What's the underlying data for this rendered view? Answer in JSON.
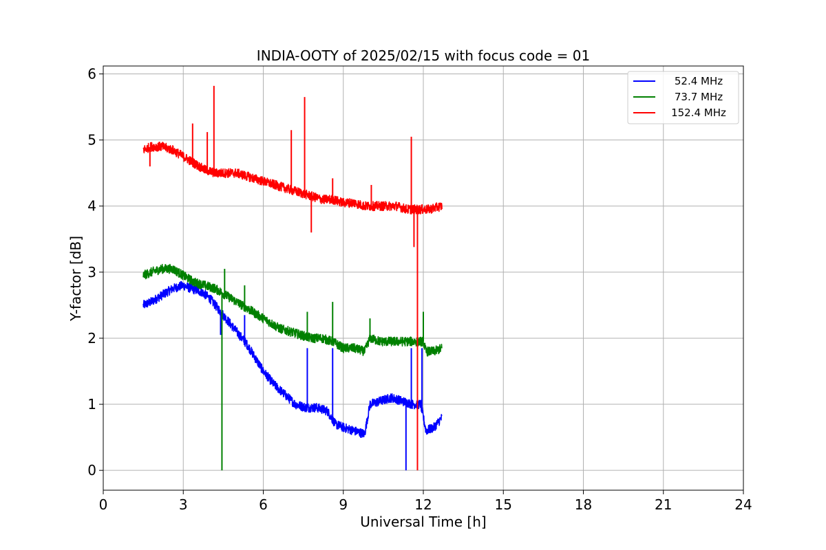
{
  "chart_data": {
    "type": "line",
    "title": "INDIA-OOTY of 2025/02/15 with focus code = 01",
    "xlabel": "Universal Time [h]",
    "ylabel": "Y-factor [dB]",
    "xlim": [
      0,
      24
    ],
    "ylim": [
      -0.3,
      6.12
    ],
    "xticks": [
      0,
      3,
      6,
      9,
      12,
      15,
      18,
      21,
      24
    ],
    "yticks": [
      0,
      1,
      2,
      3,
      4,
      5,
      6
    ],
    "grid": true,
    "legend_position": "top-right",
    "series": [
      {
        "name": "52.4 MHz",
        "color": "#0000ff",
        "x": [
          1.5,
          1.8,
          2.2,
          2.6,
          3.0,
          3.3,
          3.7,
          4.0,
          4.3,
          4.5,
          4.8,
          5.1,
          5.4,
          5.7,
          6.0,
          6.4,
          6.8,
          7.2,
          7.6,
          8.0,
          8.4,
          8.7,
          9.0,
          9.4,
          9.8,
          10.0,
          10.4,
          10.8,
          11.2,
          11.6,
          11.9,
          12.1,
          12.4,
          12.7
        ],
        "values": [
          2.5,
          2.55,
          2.65,
          2.75,
          2.8,
          2.75,
          2.7,
          2.6,
          2.45,
          2.35,
          2.2,
          2.05,
          1.9,
          1.7,
          1.5,
          1.3,
          1.15,
          1.0,
          0.95,
          0.95,
          0.9,
          0.7,
          0.65,
          0.6,
          0.55,
          1.0,
          1.05,
          1.1,
          1.05,
          1.0,
          1.0,
          0.6,
          0.65,
          0.8
        ],
        "spikes": [
          {
            "x": 4.4,
            "y": 2.05
          },
          {
            "x": 5.3,
            "y": 2.35
          },
          {
            "x": 7.65,
            "y": 1.85
          },
          {
            "x": 8.6,
            "y": 1.85
          },
          {
            "x": 11.35,
            "y": 0.0
          },
          {
            "x": 11.55,
            "y": 1.85
          },
          {
            "x": 11.95,
            "y": 1.85
          }
        ]
      },
      {
        "name": "73.7 MHz",
        "color": "#008000",
        "x": [
          1.5,
          1.8,
          2.2,
          2.6,
          3.0,
          3.4,
          3.8,
          4.2,
          4.6,
          5.0,
          5.4,
          5.8,
          6.2,
          6.6,
          7.0,
          7.4,
          7.8,
          8.2,
          8.6,
          9.0,
          9.4,
          9.8,
          10.0,
          10.4,
          10.8,
          11.2,
          11.6,
          12.0,
          12.1,
          12.4,
          12.7
        ],
        "values": [
          2.95,
          3.0,
          3.05,
          3.05,
          2.95,
          2.85,
          2.8,
          2.75,
          2.65,
          2.55,
          2.45,
          2.35,
          2.25,
          2.15,
          2.1,
          2.05,
          2.0,
          2.0,
          1.95,
          1.85,
          1.85,
          1.8,
          2.0,
          1.95,
          1.95,
          1.95,
          1.95,
          1.95,
          1.8,
          1.8,
          1.85
        ],
        "spikes": [
          {
            "x": 4.45,
            "y": 0.0
          },
          {
            "x": 4.55,
            "y": 3.05
          },
          {
            "x": 5.3,
            "y": 2.8
          },
          {
            "x": 7.65,
            "y": 2.4
          },
          {
            "x": 8.6,
            "y": 2.55
          },
          {
            "x": 10.0,
            "y": 2.3
          },
          {
            "x": 12.0,
            "y": 2.4
          }
        ]
      },
      {
        "name": "152.4 MHz",
        "color": "#ff0000",
        "x": [
          1.5,
          1.8,
          2.2,
          2.6,
          3.0,
          3.4,
          3.8,
          4.2,
          4.6,
          5.0,
          5.4,
          5.8,
          6.2,
          6.6,
          7.0,
          7.4,
          7.8,
          8.2,
          8.6,
          9.0,
          9.4,
          9.8,
          10.2,
          10.6,
          11.0,
          11.4,
          11.8,
          12.2,
          12.7
        ],
        "values": [
          4.85,
          4.9,
          4.9,
          4.85,
          4.75,
          4.65,
          4.55,
          4.5,
          4.5,
          4.5,
          4.45,
          4.4,
          4.35,
          4.3,
          4.25,
          4.2,
          4.15,
          4.1,
          4.1,
          4.05,
          4.05,
          4.0,
          4.0,
          4.0,
          4.0,
          3.95,
          3.95,
          3.95,
          4.0
        ],
        "spikes": [
          {
            "x": 1.75,
            "y": 4.6
          },
          {
            "x": 3.35,
            "y": 5.25
          },
          {
            "x": 3.9,
            "y": 5.12
          },
          {
            "x": 4.15,
            "y": 5.82
          },
          {
            "x": 7.05,
            "y": 5.15
          },
          {
            "x": 7.55,
            "y": 5.65
          },
          {
            "x": 7.8,
            "y": 3.6
          },
          {
            "x": 8.6,
            "y": 4.42
          },
          {
            "x": 10.05,
            "y": 4.32
          },
          {
            "x": 11.55,
            "y": 5.05
          },
          {
            "x": 11.65,
            "y": 3.38
          },
          {
            "x": 11.78,
            "y": 0.0
          }
        ]
      }
    ]
  }
}
